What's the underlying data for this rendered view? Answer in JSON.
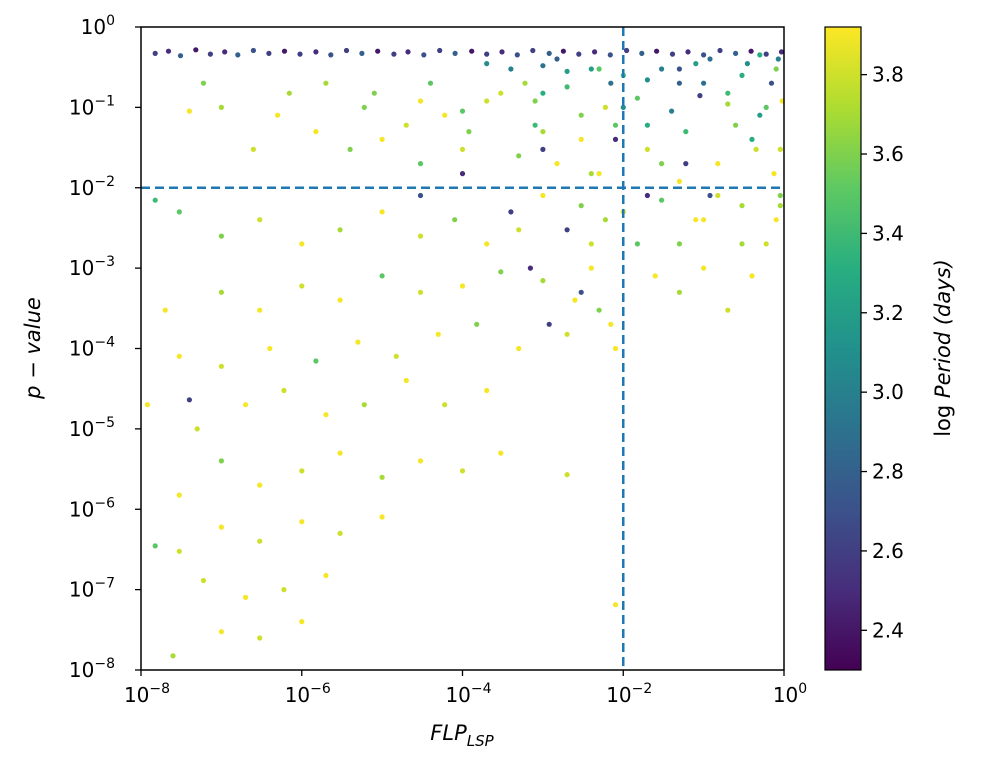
{
  "chart_data": {
    "type": "scatter",
    "title": "",
    "xlabel": {
      "main": "FLP",
      "sub": "LSP"
    },
    "ylabel": "p − value",
    "x_scale": "log",
    "y_scale": "log",
    "xlim": [
      1e-08,
      1
    ],
    "ylim": [
      1e-08,
      1
    ],
    "x_ticks": [
      {
        "value": 1e-08,
        "base": "10",
        "exp": "−8"
      },
      {
        "value": 1e-06,
        "base": "10",
        "exp": "−6"
      },
      {
        "value": 0.0001,
        "base": "10",
        "exp": "−4"
      },
      {
        "value": 0.01,
        "base": "10",
        "exp": "−2"
      },
      {
        "value": 1,
        "base": "10",
        "exp": "0"
      }
    ],
    "y_ticks": [
      {
        "value": 1,
        "base": "10",
        "exp": "0"
      },
      {
        "value": 0.1,
        "base": "10",
        "exp": "−1"
      },
      {
        "value": 0.01,
        "base": "10",
        "exp": "−2"
      },
      {
        "value": 0.001,
        "base": "10",
        "exp": "−3"
      },
      {
        "value": 0.0001,
        "base": "10",
        "exp": "−4"
      },
      {
        "value": 1e-05,
        "base": "10",
        "exp": "−5"
      },
      {
        "value": 1e-06,
        "base": "10",
        "exp": "−6"
      },
      {
        "value": 1e-07,
        "base": "10",
        "exp": "−7"
      },
      {
        "value": 1e-08,
        "base": "10",
        "exp": "−8"
      }
    ],
    "reference_lines": [
      {
        "orientation": "vertical",
        "x": 0.01,
        "style": "dashed",
        "color": "#1f77b4"
      },
      {
        "orientation": "horizontal",
        "y": 0.01,
        "style": "dashed",
        "color": "#1f77b4"
      }
    ],
    "colorbar": {
      "label": {
        "prefix": "log ",
        "italic": "Period (days)"
      },
      "colormap": "viridis",
      "range": [
        2.3,
        3.92
      ],
      "ticks": [
        "2.4",
        "2.6",
        "2.8",
        "3.0",
        "3.2",
        "3.4",
        "3.6",
        "3.8"
      ]
    },
    "points": [
      [
        1.5e-08,
        0.47,
        2.6
      ],
      [
        2.2e-08,
        0.5,
        2.5
      ],
      [
        3.1e-08,
        0.44,
        2.8
      ],
      [
        4.8e-08,
        0.52,
        2.4
      ],
      [
        7.3e-08,
        0.46,
        2.6
      ],
      [
        1.1e-07,
        0.49,
        2.5
      ],
      [
        1.6e-07,
        0.45,
        2.8
      ],
      [
        2.5e-07,
        0.51,
        2.7
      ],
      [
        3.9e-07,
        0.47,
        2.6
      ],
      [
        6.1e-07,
        0.5,
        2.4
      ],
      [
        9.5e-07,
        0.46,
        2.6
      ],
      [
        1.5e-06,
        0.49,
        2.5
      ],
      [
        2.3e-06,
        0.45,
        2.7
      ],
      [
        3.6e-06,
        0.51,
        2.6
      ],
      [
        5.6e-06,
        0.47,
        2.8
      ],
      [
        8.8e-06,
        0.5,
        2.4
      ],
      [
        1.4e-05,
        0.46,
        2.6
      ],
      [
        2.1e-05,
        0.49,
        2.5
      ],
      [
        3.3e-05,
        0.45,
        2.7
      ],
      [
        5.2e-05,
        0.51,
        2.6
      ],
      [
        8.1e-05,
        0.47,
        2.8
      ],
      [
        0.00013,
        0.5,
        2.4
      ],
      [
        0.0002,
        0.46,
        2.6
      ],
      [
        0.00031,
        0.49,
        2.5
      ],
      [
        0.00048,
        0.45,
        2.7
      ],
      [
        0.00075,
        0.51,
        2.6
      ],
      [
        0.0012,
        0.47,
        2.8
      ],
      [
        0.0018,
        0.5,
        2.4
      ],
      [
        0.0028,
        0.46,
        2.6
      ],
      [
        0.0044,
        0.49,
        2.5
      ],
      [
        0.0069,
        0.45,
        2.7
      ],
      [
        0.011,
        0.51,
        2.6
      ],
      [
        0.017,
        0.47,
        2.8
      ],
      [
        0.026,
        0.5,
        2.4
      ],
      [
        0.041,
        0.46,
        2.6
      ],
      [
        0.064,
        0.49,
        2.5
      ],
      [
        0.1,
        0.45,
        2.7
      ],
      [
        0.16,
        0.51,
        2.6
      ],
      [
        0.25,
        0.47,
        2.8
      ],
      [
        0.39,
        0.5,
        2.4
      ],
      [
        0.6,
        0.46,
        2.6
      ],
      [
        0.93,
        0.49,
        2.5
      ],
      [
        0.0002,
        0.35,
        3.1
      ],
      [
        0.0004,
        0.3,
        3.0
      ],
      [
        0.001,
        0.33,
        2.9
      ],
      [
        0.002,
        0.28,
        3.2
      ],
      [
        0.005,
        0.3,
        3.5
      ],
      [
        0.01,
        0.25,
        3.4
      ],
      [
        0.02,
        0.22,
        3.1
      ],
      [
        0.05,
        0.3,
        2.7
      ],
      [
        0.1,
        0.2,
        2.9
      ],
      [
        0.3,
        0.25,
        3.3
      ],
      [
        0.8,
        0.3,
        3.6
      ],
      [
        0.0003,
        0.15,
        3.8
      ],
      [
        0.0008,
        0.12,
        3.6
      ],
      [
        0.002,
        0.18,
        3.4
      ],
      [
        0.006,
        0.1,
        3.8
      ],
      [
        0.015,
        0.13,
        3.5
      ],
      [
        0.04,
        0.09,
        3.0
      ],
      [
        0.09,
        0.14,
        2.6
      ],
      [
        0.2,
        0.11,
        3.7
      ],
      [
        0.5,
        0.08,
        3.2
      ],
      [
        0.95,
        0.12,
        3.9
      ],
      [
        2e-06,
        0.2,
        3.7
      ],
      [
        8e-06,
        0.15,
        3.6
      ],
      [
        3e-05,
        0.12,
        3.9
      ],
      [
        0.0001,
        0.09,
        3.5
      ],
      [
        5e-07,
        0.08,
        3.9
      ],
      [
        1e-07,
        0.1,
        3.7
      ],
      [
        4e-08,
        0.09,
        3.9
      ],
      [
        0.001,
        0.05,
        3.7
      ],
      [
        0.003,
        0.04,
        3.9
      ],
      [
        0.008,
        0.06,
        3.5
      ],
      [
        0.02,
        0.03,
        3.8
      ],
      [
        0.06,
        0.05,
        3.4
      ],
      [
        0.15,
        0.02,
        3.9
      ],
      [
        0.4,
        0.04,
        3.3
      ],
      [
        0.9,
        0.03,
        3.8
      ],
      [
        0.0005,
        0.025,
        3.6
      ],
      [
        0.0015,
        0.02,
        3.9
      ],
      [
        0.004,
        0.015,
        3.7
      ],
      [
        0.0001,
        0.03,
        3.8
      ],
      [
        3e-05,
        0.02,
        3.5
      ],
      [
        1e-05,
        0.04,
        3.9
      ],
      [
        4e-06,
        0.03,
        3.6
      ],
      [
        0.001,
        0.008,
        3.9
      ],
      [
        0.003,
        0.006,
        3.6
      ],
      [
        0.01,
        0.005,
        3.8
      ],
      [
        0.03,
        0.007,
        3.5
      ],
      [
        0.1,
        0.004,
        3.9
      ],
      [
        0.3,
        0.006,
        3.7
      ],
      [
        0.9,
        0.008,
        3.6
      ],
      [
        0.0005,
        0.003,
        3.8
      ],
      [
        0.0002,
        0.002,
        3.9
      ],
      [
        8e-05,
        0.004,
        3.6
      ],
      [
        3e-05,
        0.0025,
        3.8
      ],
      [
        1e-05,
        0.005,
        3.9
      ],
      [
        3e-06,
        0.003,
        3.7
      ],
      [
        1e-06,
        0.002,
        3.9
      ],
      [
        3e-07,
        0.004,
        3.8
      ],
      [
        1e-07,
        0.0025,
        3.6
      ],
      [
        3e-08,
        0.005,
        3.5
      ],
      [
        1.5e-08,
        0.007,
        3.4
      ],
      [
        0.004,
        0.001,
        3.9
      ],
      [
        0.001,
        0.0007,
        3.7
      ],
      [
        0.0003,
        0.0009,
        3.6
      ],
      [
        0.0001,
        0.0006,
        3.9
      ],
      [
        3e-05,
        0.0005,
        3.8
      ],
      [
        1e-05,
        0.0008,
        3.5
      ],
      [
        3e-06,
        0.0004,
        3.9
      ],
      [
        1e-06,
        0.0006,
        3.8
      ],
      [
        3e-07,
        0.0003,
        3.9
      ],
      [
        1e-07,
        0.0005,
        3.7
      ],
      [
        2e-08,
        0.0003,
        3.9
      ],
      [
        0.007,
        0.0002,
        3.9
      ],
      [
        0.002,
        0.00015,
        3.8
      ],
      [
        0.0005,
        0.0001,
        3.9
      ],
      [
        0.00015,
        0.0002,
        3.6
      ],
      [
        5e-05,
        0.00015,
        3.9
      ],
      [
        1.5e-05,
        8e-05,
        3.8
      ],
      [
        5e-06,
        0.00012,
        3.9
      ],
      [
        1.5e-06,
        7e-05,
        3.5
      ],
      [
        4e-07,
        0.0001,
        3.9
      ],
      [
        1e-07,
        6e-05,
        3.8
      ],
      [
        3e-08,
        8e-05,
        3.9
      ],
      [
        0.0002,
        3e-05,
        3.9
      ],
      [
        6e-05,
        2e-05,
        3.8
      ],
      [
        2e-05,
        4e-05,
        3.9
      ],
      [
        6e-06,
        2e-05,
        3.7
      ],
      [
        2e-06,
        1.5e-05,
        3.9
      ],
      [
        6e-07,
        3e-05,
        3.8
      ],
      [
        2e-07,
        2e-05,
        3.9
      ],
      [
        5e-08,
        1e-05,
        3.8
      ],
      [
        1.2e-08,
        2e-05,
        3.9
      ],
      [
        4e-08,
        2.3e-05,
        2.6
      ],
      [
        0.0003,
        5e-06,
        3.9
      ],
      [
        0.0001,
        3e-06,
        3.8
      ],
      [
        3e-05,
        4e-06,
        3.9
      ],
      [
        1e-05,
        2.5e-06,
        3.7
      ],
      [
        3e-06,
        5e-06,
        3.9
      ],
      [
        1e-06,
        3e-06,
        3.8
      ],
      [
        3e-07,
        2e-06,
        3.9
      ],
      [
        1e-07,
        4e-06,
        3.6
      ],
      [
        3e-08,
        1.5e-06,
        3.9
      ],
      [
        0.002,
        2.7e-06,
        3.8
      ],
      [
        1e-05,
        8e-07,
        3.9
      ],
      [
        3e-06,
        5e-07,
        3.8
      ],
      [
        1e-06,
        7e-07,
        3.9
      ],
      [
        3e-07,
        4e-07,
        3.8
      ],
      [
        1e-07,
        6e-07,
        3.9
      ],
      [
        3e-08,
        3e-07,
        3.8
      ],
      [
        1.5e-08,
        3.5e-07,
        3.5
      ],
      [
        2e-06,
        1.5e-07,
        3.9
      ],
      [
        6e-07,
        1e-07,
        3.8
      ],
      [
        2e-07,
        8e-08,
        3.9
      ],
      [
        6e-08,
        1.3e-07,
        3.8
      ],
      [
        1e-06,
        4e-08,
        3.9
      ],
      [
        3e-07,
        2.5e-08,
        3.8
      ],
      [
        1e-07,
        3e-08,
        3.9
      ],
      [
        2.5e-08,
        1.5e-08,
        3.7
      ],
      [
        0.008,
        6.5e-08,
        3.9
      ],
      [
        0.03,
        0.3,
        3.0
      ],
      [
        0.05,
        0.2,
        2.8
      ],
      [
        0.08,
        0.35,
        3.2
      ],
      [
        0.12,
        0.4,
        2.9
      ],
      [
        0.2,
        0.15,
        3.4
      ],
      [
        0.35,
        0.35,
        3.1
      ],
      [
        0.5,
        0.45,
        3.3
      ],
      [
        0.7,
        0.2,
        2.7
      ],
      [
        0.85,
        0.4,
        3.0
      ],
      [
        0.6,
        0.1,
        3.5
      ],
      [
        0.25,
        0.06,
        3.6
      ],
      [
        0.45,
        0.03,
        3.8
      ],
      [
        0.75,
        0.015,
        3.9
      ],
      [
        0.9,
        0.006,
        3.7
      ],
      [
        0.15,
        0.008,
        3.8
      ],
      [
        0.05,
        0.012,
        3.9
      ],
      [
        0.03,
        0.02,
        3.6
      ],
      [
        0.02,
        0.06,
        3.3
      ],
      [
        0.01,
        0.1,
        3.1
      ],
      [
        0.007,
        0.2,
        2.9
      ],
      [
        0.004,
        0.3,
        3.2
      ],
      [
        0.003,
        0.08,
        3.6
      ],
      [
        0.005,
        0.015,
        3.9
      ],
      [
        0.006,
        0.004,
        3.7
      ],
      [
        0.004,
        0.002,
        3.8
      ],
      [
        0.0025,
        0.0004,
        3.9
      ],
      [
        0.005,
        0.0003,
        3.6
      ],
      [
        0.008,
        0.0001,
        3.9
      ],
      [
        0.015,
        0.002,
        3.5
      ],
      [
        0.025,
        0.0008,
        3.9
      ],
      [
        0.05,
        0.0005,
        3.7
      ],
      [
        0.1,
        0.001,
        3.9
      ],
      [
        0.2,
        0.0003,
        3.8
      ],
      [
        0.05,
        0.002,
        3.6
      ],
      [
        0.08,
        0.004,
        3.9
      ],
      [
        0.3,
        0.002,
        3.7
      ],
      [
        0.6,
        0.002,
        3.8
      ],
      [
        0.8,
        0.004,
        3.9
      ],
      [
        0.4,
        0.0008,
        3.9
      ],
      [
        0.001,
        0.15,
        3.3
      ],
      [
        0.0015,
        0.4,
        2.8
      ],
      [
        0.0006,
        0.2,
        3.7
      ],
      [
        0.0008,
        0.06,
        3.4
      ],
      [
        0.0002,
        0.12,
        3.8
      ],
      [
        0.00012,
        0.05,
        3.6
      ],
      [
        6e-05,
        0.08,
        3.9
      ],
      [
        4e-05,
        0.2,
        3.5
      ],
      [
        2e-05,
        0.06,
        3.8
      ],
      [
        6e-06,
        0.1,
        3.6
      ],
      [
        1.5e-06,
        0.05,
        3.9
      ],
      [
        7e-07,
        0.15,
        3.7
      ],
      [
        2.5e-07,
        0.03,
        3.8
      ],
      [
        6e-08,
        0.2,
        3.6
      ],
      [
        0.002,
        0.003,
        2.6
      ],
      [
        0.0007,
        0.001,
        2.5
      ],
      [
        0.003,
        0.0005,
        2.7
      ],
      [
        0.0012,
        0.0002,
        2.6
      ],
      [
        0.02,
        0.008,
        2.5
      ],
      [
        0.06,
        0.02,
        2.6
      ],
      [
        0.12,
        0.008,
        2.7
      ],
      [
        0.0004,
        0.005,
        2.6
      ],
      [
        0.0001,
        0.015,
        2.5
      ],
      [
        3e-05,
        0.008,
        2.7
      ],
      [
        0.001,
        0.03,
        2.6
      ],
      [
        0.008,
        0.04,
        2.5
      ]
    ]
  }
}
